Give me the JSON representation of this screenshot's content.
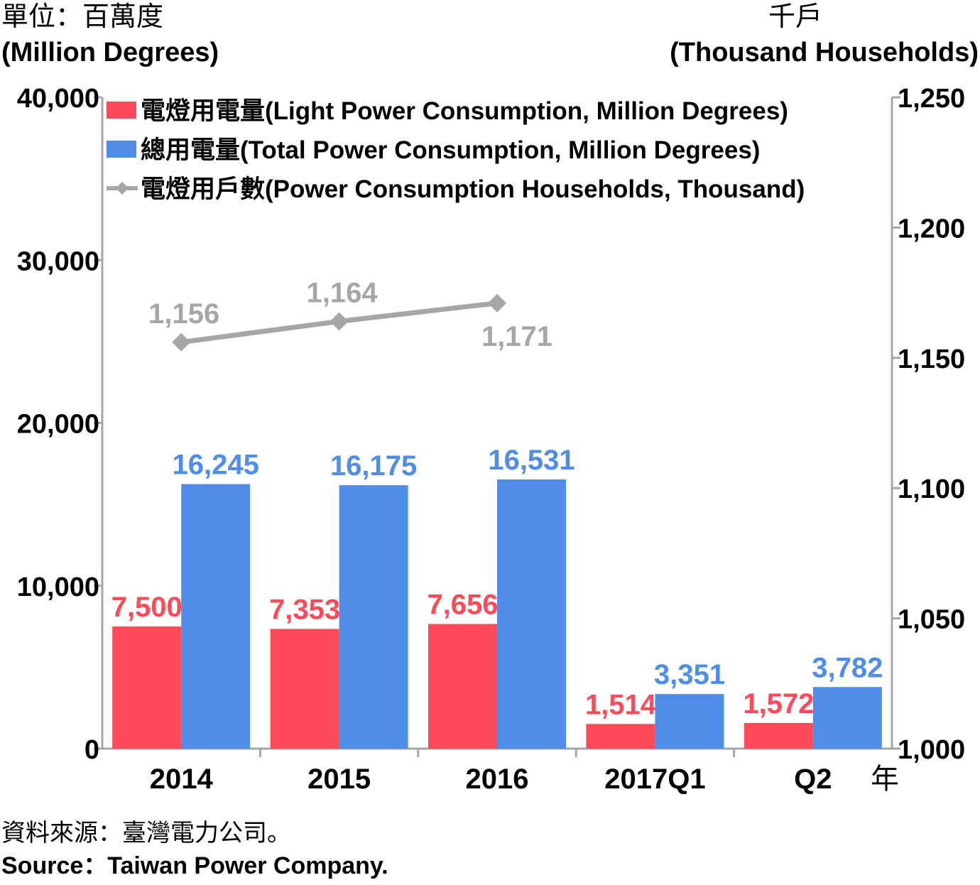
{
  "units": {
    "left_zh": "單位：百萬度",
    "left_en": "(Million Degrees)",
    "right_zh": "千戶",
    "right_en": "(Thousand Households)"
  },
  "source": {
    "zh": "資料來源：臺灣電力公司。",
    "en": "Source：Taiwan Power Company."
  },
  "x_axis_suffix": "年",
  "colors": {
    "light": "#ff4a5a",
    "total": "#4f8de8",
    "households": "#a6a6a6",
    "axis": "#a6a6a6"
  },
  "chart_data": {
    "type": "bar",
    "categories": [
      "2014",
      "2015",
      "2016",
      "2017Q1",
      "Q2"
    ],
    "series": [
      {
        "name": "電燈用電量(Light Power Consumption, Million Degrees)",
        "type": "bar",
        "axis": "left",
        "values": [
          7500,
          7353,
          7656,
          1514,
          1572
        ],
        "labels": [
          "7,500",
          "7,353",
          "7,656",
          "1,514",
          "1,572"
        ]
      },
      {
        "name": "總用電量(Total Power Consumption, Million Degrees)",
        "type": "bar",
        "axis": "left",
        "values": [
          16245,
          16175,
          16531,
          3351,
          3782
        ],
        "labels": [
          "16,245",
          "16,175",
          "16,531",
          "3,351",
          "3,782"
        ]
      },
      {
        "name": "電燈用戶數(Power Consumption Households, Thousand)",
        "type": "line",
        "axis": "right",
        "values": [
          1156,
          1164,
          1171,
          null,
          null
        ],
        "labels": [
          "1,156",
          "1,164",
          "1,171",
          "",
          ""
        ]
      }
    ],
    "left_axis": {
      "ylim": [
        0,
        40000
      ],
      "ticks": [
        0,
        10000,
        20000,
        30000,
        40000
      ],
      "tick_labels": [
        "0",
        "10,000",
        "20,000",
        "30,000",
        "40,000"
      ]
    },
    "right_axis": {
      "ylim": [
        1000,
        1250
      ],
      "ticks": [
        1000,
        1050,
        1100,
        1150,
        1200,
        1250
      ],
      "tick_labels": [
        "1,000",
        "1,050",
        "1,100",
        "1,150",
        "1,200",
        "1,250"
      ]
    },
    "grid": false,
    "legend_position": "top-left"
  }
}
